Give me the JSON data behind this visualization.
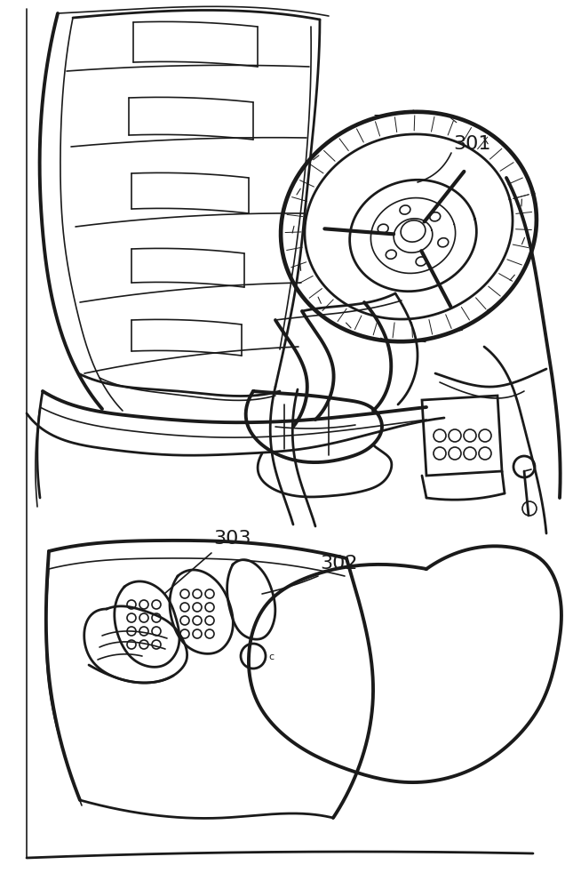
{
  "background_color": "#ffffff",
  "line_color": "#1a1a1a",
  "label_301": "301",
  "label_302": "302",
  "label_303": "303",
  "fig_width": 6.36,
  "fig_height": 10.0,
  "dpi": 100
}
